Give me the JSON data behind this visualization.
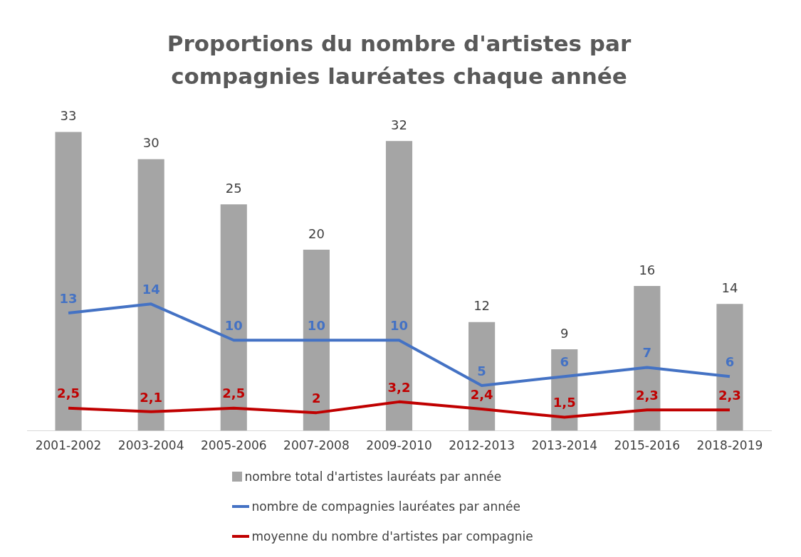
{
  "chart_data": {
    "type": "bar",
    "title": "Proportions du nombre d'artistes par compagnies lauréates chaque année",
    "categories": [
      "2001-2002",
      "2003-2004",
      "2005-2006",
      "2007-2008",
      "2009-2010",
      "2012-2013",
      "2013-2014",
      "2015-2016",
      "2018-2019"
    ],
    "series": [
      {
        "name": "nombre total d'artistes lauréats par année",
        "color": "#a5a5a5",
        "values": [
          33,
          30,
          25,
          20,
          32,
          12,
          9,
          16,
          14
        ],
        "value_labels": [
          "33",
          "30",
          "25",
          "20",
          "32",
          "12",
          "9",
          "16",
          "14"
        ]
      },
      {
        "name": "nombre de compagnies lauréates par année",
        "type": "line",
        "color": "#4472c4",
        "values": [
          13,
          14,
          10,
          10,
          10,
          5,
          6,
          7,
          6
        ],
        "value_labels": [
          "13",
          "14",
          "10",
          "10",
          "10",
          "5",
          "6",
          "7",
          "6"
        ]
      },
      {
        "name": "moyenne du nombre d'artistes par compagnie",
        "type": "line",
        "color": "#c00000",
        "values": [
          2.5,
          2.1,
          2.5,
          2,
          3.2,
          2.4,
          1.5,
          2.3,
          2.3
        ],
        "value_labels": [
          "2,5",
          "2,1",
          "2,5",
          "2",
          "3,2",
          "2,4",
          "1,5",
          "2,3",
          "2,3"
        ]
      }
    ],
    "grid": false,
    "legend": "bottom",
    "marker": "none"
  }
}
